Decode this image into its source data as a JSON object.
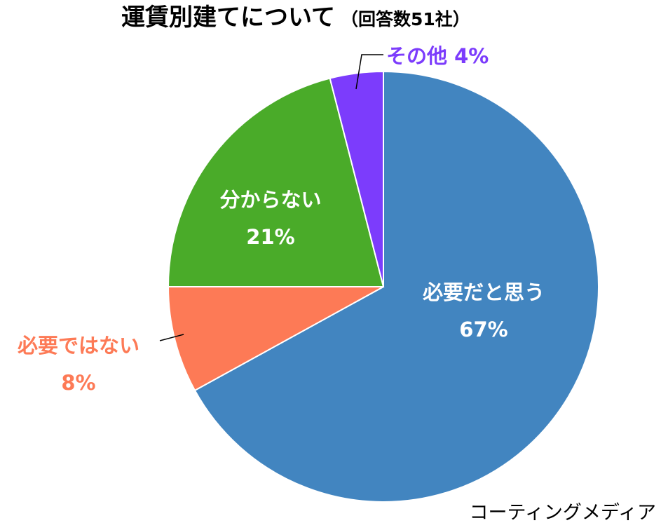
{
  "chart_data": {
    "type": "pie",
    "title": "運賃別建てについて",
    "subtitle": "（回答数51社）",
    "slices": [
      {
        "label": "必要だと思う",
        "value": 67,
        "value_label": "67%",
        "color": "#4285c0"
      },
      {
        "label": "必要ではない",
        "value": 8,
        "value_label": "8%",
        "color": "#fd7a56"
      },
      {
        "label": "分からない",
        "value": 21,
        "value_label": "21%",
        "color": "#4aab29"
      },
      {
        "label": "その他",
        "value": 4,
        "value_label": "4%",
        "color": "#7c3cfc"
      }
    ],
    "label_colors": {
      "inside": "#ffffff"
    },
    "start": "top",
    "direction": "clockwise"
  },
  "credit": "コーティングメディア"
}
